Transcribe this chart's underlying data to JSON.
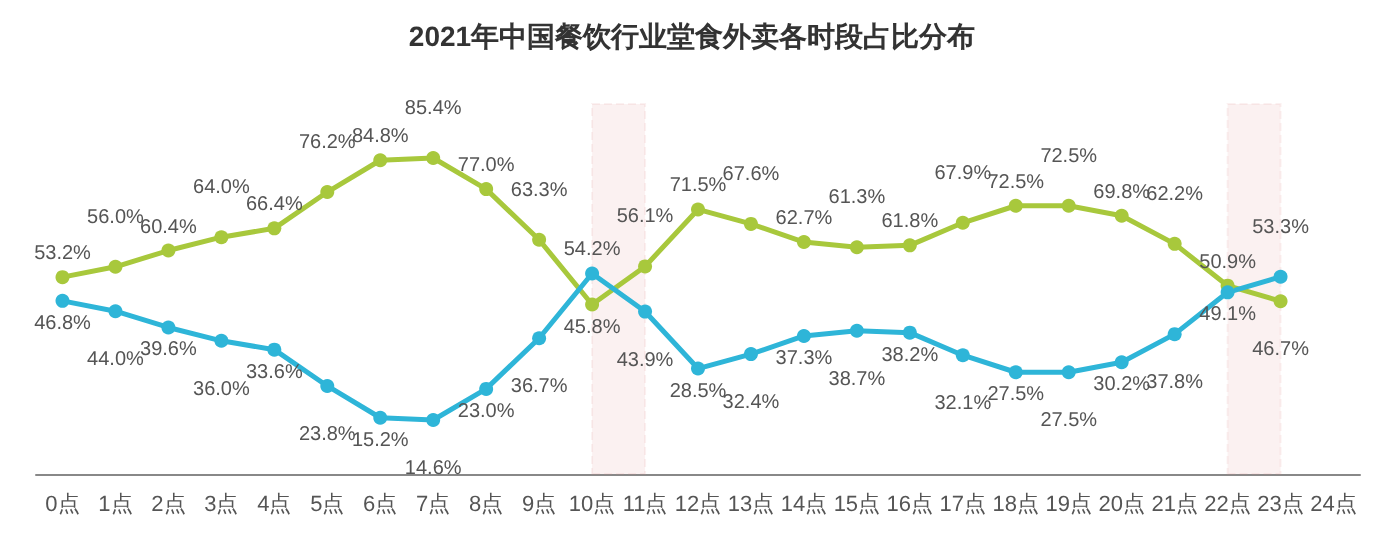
{
  "chart_data": {
    "type": "line",
    "title": "2021年中国餐饮行业堂食外卖各时段占比分布",
    "categories": [
      "0点",
      "1点",
      "2点",
      "3点",
      "4点",
      "5点",
      "6点",
      "7点",
      "8点",
      "9点",
      "10点",
      "11点",
      "12点",
      "13点",
      "14点",
      "15点",
      "16点",
      "17点",
      "18点",
      "19点",
      "20点",
      "21点",
      "22点",
      "23点",
      "24点"
    ],
    "series": [
      {
        "color": "#a8c83c",
        "values": [
          53.2,
          56.0,
          60.4,
          64.0,
          66.4,
          76.2,
          84.8,
          85.4,
          77.0,
          63.3,
          45.8,
          56.1,
          71.5,
          67.6,
          62.7,
          61.3,
          61.8,
          67.9,
          72.5,
          72.5,
          69.8,
          62.2,
          50.9,
          46.7,
          null
        ],
        "value_labels": [
          "53.2%",
          "56.0%",
          "60.4%",
          "64.0%",
          "66.4%",
          "76.2%",
          "84.8%",
          "85.4%",
          "77.0%",
          "63.3%",
          "45.8%",
          "56.1%",
          "71.5%",
          "67.6%",
          "62.7%",
          "61.3%",
          "61.8%",
          "67.9%",
          "72.5%",
          "72.5%",
          "69.8%",
          "62.2%",
          "50.9%",
          "46.7%",
          null
        ]
      },
      {
        "color": "#2eb5d8",
        "values": [
          46.8,
          44.0,
          39.6,
          36.0,
          33.6,
          23.8,
          15.2,
          14.6,
          23.0,
          36.7,
          54.2,
          43.9,
          28.5,
          32.4,
          37.3,
          38.7,
          38.2,
          32.1,
          27.5,
          27.5,
          30.2,
          37.8,
          49.1,
          53.3,
          null
        ],
        "value_labels": [
          "46.8%",
          "44.0%",
          "39.6%",
          "36.0%",
          "33.6%",
          "23.8%",
          "15.2%",
          "14.6%",
          "23.0%",
          "36.7%",
          "54.2%",
          "43.9%",
          "28.5%",
          "32.4%",
          "37.3%",
          "38.7%",
          "38.2%",
          "32.1%",
          "27.5%",
          "27.5%",
          "30.2%",
          "37.8%",
          "49.1%",
          "53.3%",
          null
        ]
      }
    ],
    "bands": [
      {
        "axis": "x",
        "from": "10点",
        "to": "11点",
        "color": "#e08a8a"
      },
      {
        "axis": "x",
        "from": "22点",
        "to": "23点",
        "color": "#e08a8a"
      }
    ],
    "marker": "circle",
    "line_style": "solid",
    "grid": false
  }
}
